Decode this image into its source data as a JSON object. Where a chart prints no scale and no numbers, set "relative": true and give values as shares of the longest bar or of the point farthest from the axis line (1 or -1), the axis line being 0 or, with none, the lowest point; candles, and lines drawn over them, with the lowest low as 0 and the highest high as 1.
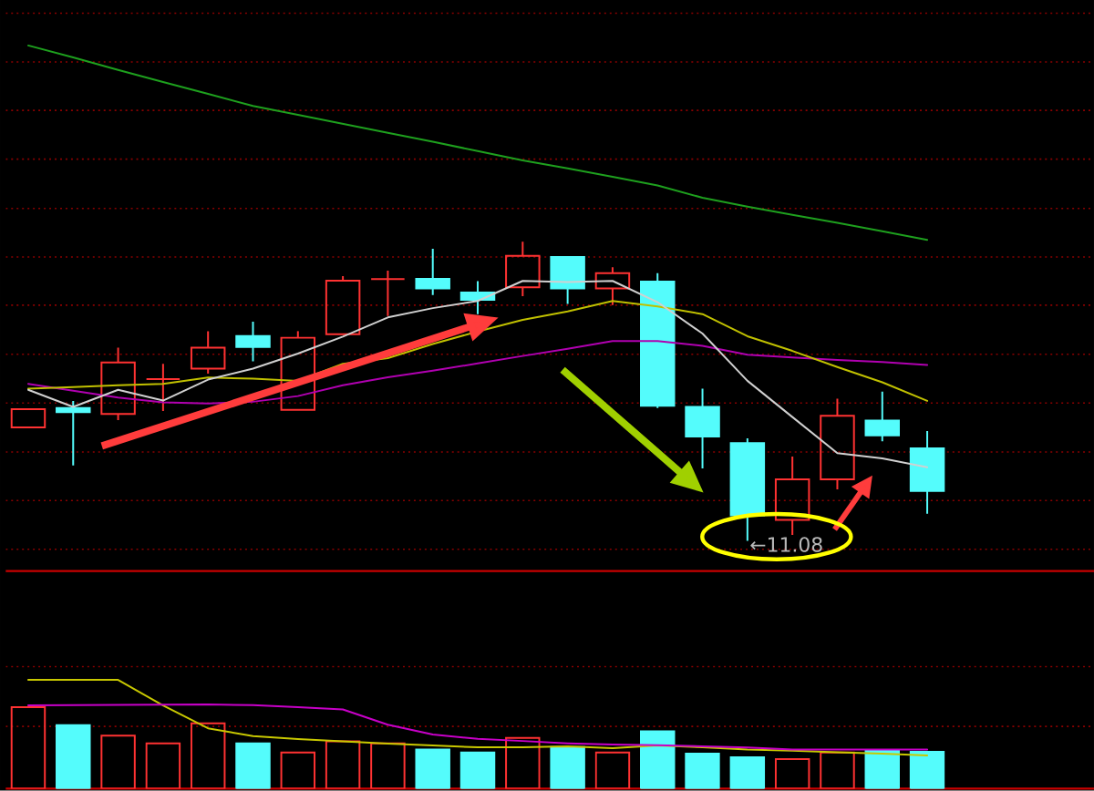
{
  "chart_data": [
    {
      "type": "candlestick",
      "relative": true,
      "categories": [
        null,
        null,
        null,
        null,
        null,
        null,
        null,
        null,
        null,
        null,
        null,
        null,
        null,
        null,
        null,
        null,
        null,
        null,
        null,
        null,
        null
      ],
      "ohlc": [
        [
          0.379,
          0.44,
          0.379,
          0.44
        ],
        [
          0.444,
          0.468,
          0.252,
          0.43
        ],
        [
          0.424,
          0.646,
          0.404,
          0.596
        ],
        [
          0.541,
          0.592,
          0.434,
          0.541
        ],
        [
          0.576,
          0.701,
          0.559,
          0.646
        ],
        [
          0.685,
          0.733,
          0.6,
          0.648
        ],
        [
          0.438,
          0.701,
          0.438,
          0.679
        ],
        [
          0.691,
          0.885,
          0.691,
          0.87
        ],
        [
          0.875,
          0.903,
          0.752,
          0.875
        ],
        [
          0.876,
          0.976,
          0.822,
          0.844
        ],
        [
          0.83,
          0.868,
          0.758,
          0.806
        ],
        [
          0.848,
          1,
          0.818,
          0.953
        ],
        [
          0.949,
          0.949,
          0.792,
          0.844
        ],
        [
          0.844,
          0.915,
          0.788,
          0.895
        ],
        [
          0.867,
          0.895,
          0.444,
          0.452
        ],
        [
          0.448,
          0.509,
          0.242,
          0.349
        ],
        [
          0.327,
          0.343,
          0,
          0.085
        ],
        [
          0.07,
          0.282,
          0.02,
          0.206
        ],
        [
          0.206,
          0.475,
          0.172,
          0.418
        ],
        [
          0.402,
          0.499,
          0.333,
          0.353
        ],
        [
          0.309,
          0.367,
          0.091,
          0.167
        ]
      ],
      "colors": [
        "#ff3232",
        "#54fcfc",
        "#ff3232",
        "#ff3232",
        "#ff3232",
        "#54fcfc",
        "#ff3232",
        "#ff3232",
        "#ff3232",
        "#54fcfc",
        "#54fcfc",
        "#ff3232",
        "#54fcfc",
        "#ff3232",
        "#54fcfc",
        "#54fcfc",
        "#54fcfc",
        "#ff3232",
        "#ff3232",
        "#54fcfc",
        "#54fcfc"
      ],
      "series": [
        {
          "type": "line",
          "color": "#1ea01e",
          "values": [
            1.656,
            1.616,
            1.574,
            1.534,
            1.494,
            1.454,
            1.424,
            1.394,
            1.364,
            1.334,
            1.303,
            1.272,
            1.245,
            1.217,
            1.188,
            1.147,
            1.117,
            1.09,
            1.063,
            1.035,
            1.006
          ]
        },
        {
          "type": "line",
          "color": "#b000b0",
          "values": [
            0.525,
            0.502,
            0.479,
            0.463,
            0.459,
            0.465,
            0.484,
            0.52,
            0.547,
            0.569,
            0.593,
            0.618,
            0.642,
            0.668,
            0.668,
            0.652,
            0.622,
            0.613,
            0.605,
            0.598,
            0.588
          ]
        },
        {
          "type": "line",
          "color": "#c0c000",
          "values": [
            0.509,
            0.514,
            0.52,
            0.525,
            0.546,
            0.542,
            0.535,
            0.592,
            0.611,
            0.658,
            0.7,
            0.739,
            0.767,
            0.802,
            0.784,
            0.758,
            0.684,
            0.635,
            0.581,
            0.53,
            0.468
          ]
        },
        {
          "type": "line",
          "color": "#d0d0d0",
          "values": [
            0.505,
            0.448,
            0.505,
            0.469,
            0.539,
            0.576,
            0.626,
            0.683,
            0.747,
            0.778,
            0.802,
            0.869,
            0.865,
            0.869,
            0.798,
            0.693,
            0.535,
            0.414,
            0.293,
            0.276,
            0.246
          ]
        }
      ],
      "ref_lines": [
        {
          "axis": "y",
          "value": 1.764,
          "color": "#8a0000",
          "line_style": "dotted"
        },
        {
          "axis": "y",
          "value": 1.601,
          "color": "#8a0000",
          "line_style": "dotted"
        },
        {
          "axis": "y",
          "value": 1.439,
          "color": "#8a0000",
          "line_style": "dotted"
        },
        {
          "axis": "y",
          "value": 1.276,
          "color": "#8a0000",
          "line_style": "dotted"
        },
        {
          "axis": "y",
          "value": 1.111,
          "color": "#8a0000",
          "line_style": "dotted"
        },
        {
          "axis": "y",
          "value": 0.949,
          "color": "#8a0000",
          "line_style": "dotted"
        },
        {
          "axis": "y",
          "value": 0.788,
          "color": "#8a0000",
          "line_style": "dotted"
        },
        {
          "axis": "y",
          "value": 0.624,
          "color": "#8a0000",
          "line_style": "dotted"
        },
        {
          "axis": "y",
          "value": 0.461,
          "color": "#8a0000",
          "line_style": "dotted"
        },
        {
          "axis": "y",
          "value": 0.297,
          "color": "#8a0000",
          "line_style": "dotted"
        },
        {
          "axis": "y",
          "value": 0.135,
          "color": "#8a0000",
          "line_style": "dotted"
        },
        {
          "axis": "y",
          "value": -0.028,
          "color": "#8a0000",
          "line_style": "dotted"
        }
      ],
      "annotations": [
        {
          "text": "←11.08",
          "y": 0
        }
      ]
    },
    {
      "type": "bar",
      "relative": true,
      "categories": [
        null,
        null,
        null,
        null,
        null,
        null,
        null,
        null,
        null,
        null,
        null,
        null,
        null,
        null,
        null,
        null,
        null,
        null,
        null,
        null,
        null
      ],
      "series": [
        {
          "type": "bar",
          "colors": [
            "#ff3232",
            "#54fcfc",
            "#ff3232",
            "#ff3232",
            "#ff3232",
            "#54fcfc",
            "#ff3232",
            "#ff3232",
            "#ff3232",
            "#54fcfc",
            "#54fcfc",
            "#ff3232",
            "#54fcfc",
            "#ff3232",
            "#54fcfc",
            "#54fcfc",
            "#54fcfc",
            "#ff3232",
            "#ff3232",
            "#54fcfc",
            "#54fcfc"
          ],
          "values": [
            0.75,
            0.584,
            0.488,
            0.417,
            0.6,
            0.417,
            0.333,
            0.434,
            0.417,
            0.36,
            0.333,
            0.467,
            0.383,
            0.333,
            0.527,
            0.322,
            0.288,
            0.272,
            0.333,
            0.35,
            0.338
          ]
        },
        {
          "type": "line",
          "color": "#c8c800",
          "values": [
            1,
            1,
            1,
            0.764,
            0.555,
            0.483,
            0.455,
            0.434,
            0.413,
            0.397,
            0.38,
            0.38,
            0.389,
            0.372,
            0.397,
            0.38,
            0.359,
            0.35,
            0.335,
            0.322,
            0.305
          ]
        },
        {
          "type": "line",
          "color": "#c800c8",
          "values": [
            0.765,
            0.767,
            0.77,
            0.773,
            0.775,
            0.767,
            0.75,
            0.728,
            0.588,
            0.497,
            0.458,
            0.438,
            0.417,
            0.405,
            0.4,
            0.389,
            0.378,
            0.36,
            0.36,
            0.36,
            0.36
          ]
        }
      ],
      "ref_lines": [
        {
          "axis": "y",
          "value": 0.572,
          "color": "#8a0000",
          "line_style": "dotted"
        },
        {
          "axis": "y",
          "value": 1.122,
          "color": "#8a0000",
          "line_style": "dotted"
        }
      ]
    }
  ]
}
